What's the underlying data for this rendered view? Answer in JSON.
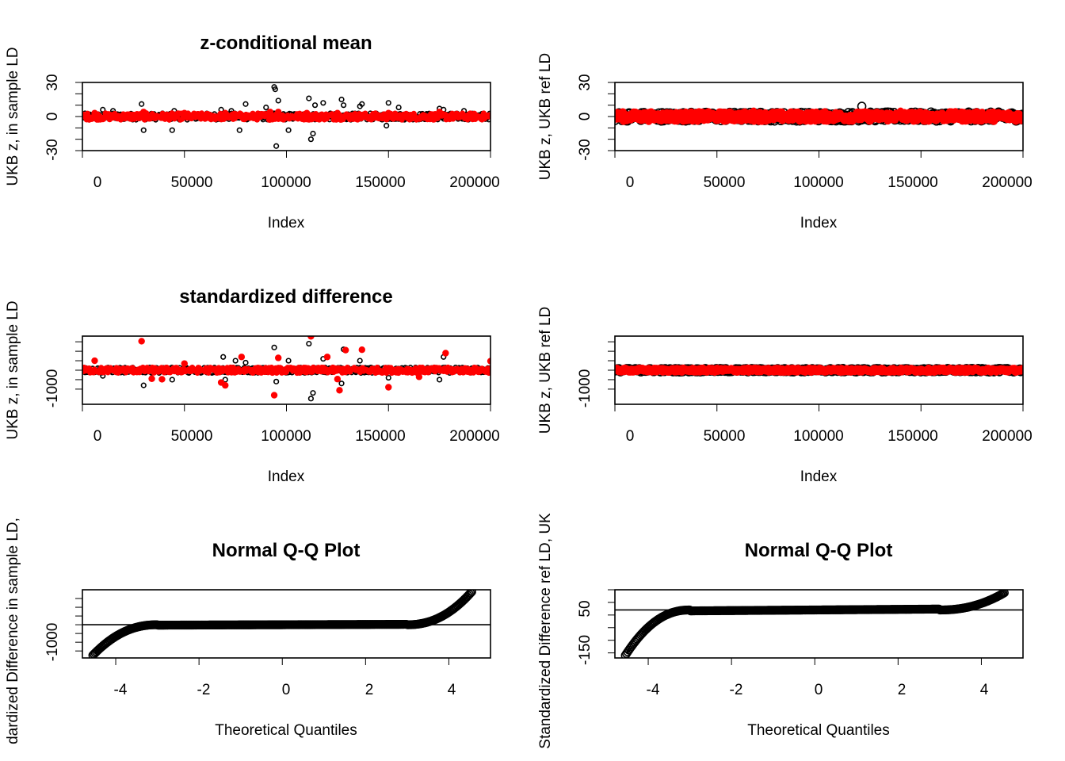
{
  "chart_data": [
    {
      "type": "scatter",
      "title": "z-conditional mean",
      "xlabel": "Index",
      "ylabel": "UKB z, in sample LD",
      "xlim": [
        0,
        200000
      ],
      "ylim": [
        -30,
        30
      ],
      "x_ticks": [
        "0",
        "50000",
        "100000",
        "150000",
        "200000"
      ],
      "y_ticks": [
        "-30",
        "0",
        "30"
      ],
      "series": [
        {
          "color": "#000000",
          "marker": "open-circle",
          "band": 3,
          "spikes": [
            [
              10000,
              6
            ],
            [
              15000,
              5
            ],
            [
              29000,
              11
            ],
            [
              30000,
              -12
            ],
            [
              44000,
              -12
            ],
            [
              45000,
              5
            ],
            [
              68000,
              6
            ],
            [
              73000,
              5
            ],
            [
              77000,
              -12
            ],
            [
              80000,
              11
            ],
            [
              90000,
              8
            ],
            [
              94000,
              26
            ],
            [
              94500,
              24
            ],
            [
              95000,
              -26
            ],
            [
              96000,
              14
            ],
            [
              101000,
              -12
            ],
            [
              111000,
              16
            ],
            [
              112000,
              -20
            ],
            [
              113000,
              -15
            ],
            [
              114000,
              10
            ],
            [
              118000,
              12
            ],
            [
              127000,
              15
            ],
            [
              128000,
              10
            ],
            [
              136000,
              9
            ],
            [
              137000,
              11
            ],
            [
              149000,
              -8
            ],
            [
              150000,
              12
            ],
            [
              155000,
              8
            ],
            [
              175000,
              7
            ],
            [
              177000,
              6
            ],
            [
              187000,
              5
            ]
          ]
        },
        {
          "color": "#ff0000",
          "marker": "filled-circle",
          "band": 3,
          "spikes": [
            [
              6000,
              3
            ],
            [
              30000,
              4
            ],
            [
              50000,
              3
            ],
            [
              70000,
              3
            ],
            [
              92000,
              4
            ],
            [
              96000,
              4
            ],
            [
              110000,
              3
            ],
            [
              125000,
              3
            ],
            [
              150000,
              3
            ],
            [
              175000,
              4
            ]
          ]
        }
      ]
    },
    {
      "type": "scatter",
      "title": "",
      "xlabel": "Index",
      "ylabel": "UKB z, UKB ref LD",
      "xlim": [
        0,
        200000
      ],
      "ylim": [
        -30,
        30
      ],
      "x_ticks": [
        "0",
        "50000",
        "100000",
        "150000",
        "200000"
      ],
      "y_ticks": [
        "-30",
        "0",
        "30"
      ],
      "series": [
        {
          "color": "#000000",
          "marker": "open-circle",
          "band": 4,
          "spikes": [
            [
              121000,
              9
            ],
            [
              30000,
              4
            ],
            [
              70000,
              4
            ],
            [
              150000,
              5
            ],
            [
              190000,
              4
            ]
          ]
        },
        {
          "color": "#ff0000",
          "marker": "filled-circle",
          "band": 4,
          "spikes": [
            [
              68000,
              5
            ],
            [
              120000,
              4
            ],
            [
              140000,
              5
            ],
            [
              180000,
              4
            ]
          ]
        }
      ]
    },
    {
      "type": "scatter",
      "title": "standardized difference",
      "xlabel": "Index",
      "ylabel": "UKB z, in sample LD",
      "xlim": [
        0,
        200000
      ],
      "ylim": [
        -1800,
        1800
      ],
      "x_ticks": [
        "0",
        "50000",
        "100000",
        "150000",
        "200000"
      ],
      "y_ticks": [
        "-1000"
      ],
      "series": [
        {
          "color": "#000000",
          "marker": "open-circle",
          "band": 150,
          "spikes": [
            [
              10000,
              -300
            ],
            [
              30000,
              -800
            ],
            [
              44000,
              -500
            ],
            [
              69000,
              700
            ],
            [
              70000,
              -500
            ],
            [
              75000,
              500
            ],
            [
              80000,
              400
            ],
            [
              94000,
              1200
            ],
            [
              95000,
              -600
            ],
            [
              101000,
              500
            ],
            [
              111000,
              1400
            ],
            [
              112000,
              -1500
            ],
            [
              113000,
              -1200
            ],
            [
              118000,
              600
            ],
            [
              127000,
              -700
            ],
            [
              128000,
              1100
            ],
            [
              136000,
              500
            ],
            [
              150000,
              -400
            ],
            [
              175000,
              -500
            ],
            [
              177000,
              700
            ]
          ]
        },
        {
          "color": "#ff0000",
          "marker": "filled-circle",
          "band": 150,
          "spikes": [
            [
              6000,
              500
            ],
            [
              29000,
              1530
            ],
            [
              34000,
              -450
            ],
            [
              39000,
              -480
            ],
            [
              50000,
              350
            ],
            [
              68000,
              -650
            ],
            [
              70000,
              -800
            ],
            [
              78000,
              700
            ],
            [
              94000,
              -1320
            ],
            [
              96000,
              650
            ],
            [
              112000,
              1790
            ],
            [
              120000,
              700
            ],
            [
              125000,
              -470
            ],
            [
              126000,
              -1060
            ],
            [
              129000,
              1060
            ],
            [
              137000,
              1080
            ],
            [
              150000,
              -900
            ],
            [
              165000,
              -350
            ],
            [
              178000,
              900
            ],
            [
              200000,
              480
            ]
          ]
        }
      ]
    },
    {
      "type": "scatter",
      "title": "",
      "xlabel": "Index",
      "ylabel": "UKB z, UKB ref LD",
      "xlim": [
        0,
        200000
      ],
      "ylim": [
        -1800,
        1800
      ],
      "x_ticks": [
        "0",
        "50000",
        "100000",
        "150000",
        "200000"
      ],
      "y_ticks": [
        "-1000"
      ],
      "series": [
        {
          "color": "#000000",
          "marker": "open-circle",
          "band": 90,
          "spikes": []
        },
        {
          "color": "#ff0000",
          "marker": "filled-circle",
          "band": 90,
          "spikes": []
        }
      ]
    },
    {
      "type": "scatter",
      "title": "Normal Q-Q Plot",
      "xlabel": "Theoretical Quantiles",
      "ylabel": "dardized Difference in sample LD,",
      "xlim": [
        -4.8,
        5.0
      ],
      "ylim": [
        -1900,
        2000
      ],
      "x_ticks": [
        "-4",
        "-2",
        "0",
        "2",
        "4"
      ],
      "y_ticks": [
        "-1000"
      ],
      "reference_line_y": 0,
      "tails": {
        "low_min": -1750,
        "high_max": 1890
      }
    },
    {
      "type": "scatter",
      "title": "Normal Q-Q Plot",
      "xlabel": "Theoretical Quantiles",
      "ylabel": "Standardized Difference ref LD, UK",
      "xlim": [
        -4.8,
        5.0
      ],
      "ylim": [
        -170,
        100
      ],
      "x_ticks": [
        "-4",
        "-2",
        "0",
        "2",
        "4"
      ],
      "y_ticks": [
        "-150",
        "50"
      ],
      "reference_line_y": 20,
      "tails": {
        "low_min": -160,
        "high_max": 88
      }
    }
  ]
}
